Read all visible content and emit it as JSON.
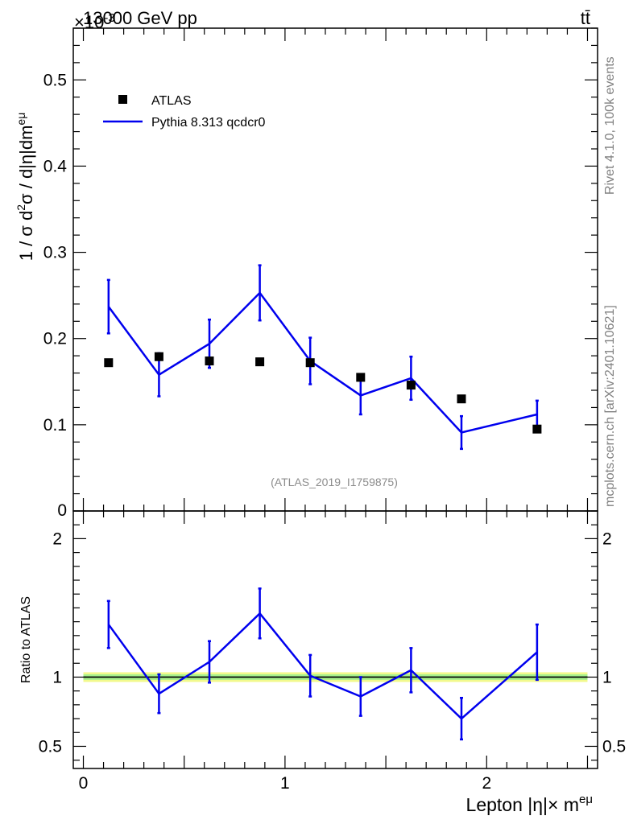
{
  "header": {
    "left": "13000 GeV pp",
    "right": "tt̄",
    "exponent_prefix": "×10",
    "exponent_power": "-3"
  },
  "side_labels": {
    "rivet": "Rivet 4.1.0,  100k events",
    "mcplots": "mcplots.cern.ch [arXiv:2401.10621]"
  },
  "analysis_id": "(ATLAS_2019_I1759875)",
  "colors": {
    "data": "#000000",
    "mc": "#0000ee",
    "band_outer": "#f2f98c",
    "band_inner": "#a6f08c"
  },
  "chart_data": [
    {
      "type": "scatter",
      "name": "main",
      "title": "",
      "ylabel": "1 / σ  d²σ / d|η|dm^eμ",
      "ylabel_parts": {
        "a": "1 / σ  d",
        "sup1": "2",
        "b": "σ / d|η|dm",
        "sup2": "eμ"
      },
      "xlim": [
        -0.05,
        2.55
      ],
      "ylim": [
        0,
        0.56
      ],
      "y_scale_note": "values x 10^-3",
      "yticks": [
        0.1,
        0.2,
        0.3,
        0.4,
        0.5
      ],
      "ytick_labels": [
        "0.1",
        "0.2",
        "0.3",
        "0.4",
        "0.5"
      ],
      "ytick_zero_label": "0",
      "legend": {
        "position": "top-left",
        "entries": [
          "ATLAS",
          "Pythia 8.313 qcdcr0"
        ]
      },
      "series": [
        {
          "name": "ATLAS",
          "style": "markers",
          "x": [
            0.125,
            0.375,
            0.625,
            0.875,
            1.125,
            1.375,
            1.625,
            1.875,
            2.25
          ],
          "y": [
            0.172,
            0.179,
            0.174,
            0.173,
            0.172,
            0.155,
            0.146,
            0.13,
            0.095
          ]
        },
        {
          "name": "Pythia 8.313 qcdcr0",
          "style": "line",
          "x": [
            0.125,
            0.375,
            0.625,
            0.875,
            1.125,
            1.375,
            1.625,
            1.875,
            2.25
          ],
          "y": [
            0.237,
            0.158,
            0.194,
            0.253,
            0.174,
            0.134,
            0.154,
            0.091,
            0.112
          ],
          "err": [
            0.031,
            0.025,
            0.028,
            0.032,
            0.027,
            0.022,
            0.025,
            0.019,
            0.016
          ]
        }
      ]
    },
    {
      "type": "line",
      "name": "ratio",
      "ylabel": "Ratio to ATLAS",
      "xlabel": "Lepton |η|× m^eμ",
      "xlabel_parts": {
        "a": "Lepton |η|× m",
        "sup": "eμ"
      },
      "xlim": [
        -0.05,
        2.55
      ],
      "ylim": [
        0.34,
        2.2
      ],
      "xticks": [
        0,
        1,
        2
      ],
      "xtick_labels": [
        "0",
        "1",
        "2"
      ],
      "yticks": [
        0.5,
        1,
        2
      ],
      "ytick_labels": [
        "0.5",
        "1",
        "2"
      ],
      "band": {
        "outer": [
          0.965,
          1.035
        ],
        "inner": [
          0.98,
          1.02
        ]
      },
      "series": [
        {
          "name": "Pythia 8.313 qcdcr0",
          "x": [
            0.125,
            0.375,
            0.625,
            0.875,
            1.125,
            1.375,
            1.625,
            1.875,
            2.25
          ],
          "y": [
            1.38,
            0.88,
            1.11,
            1.46,
            1.01,
            0.86,
            1.05,
            0.7,
            1.18
          ],
          "err": [
            0.17,
            0.14,
            0.15,
            0.18,
            0.15,
            0.14,
            0.16,
            0.15,
            0.2
          ]
        }
      ]
    }
  ]
}
